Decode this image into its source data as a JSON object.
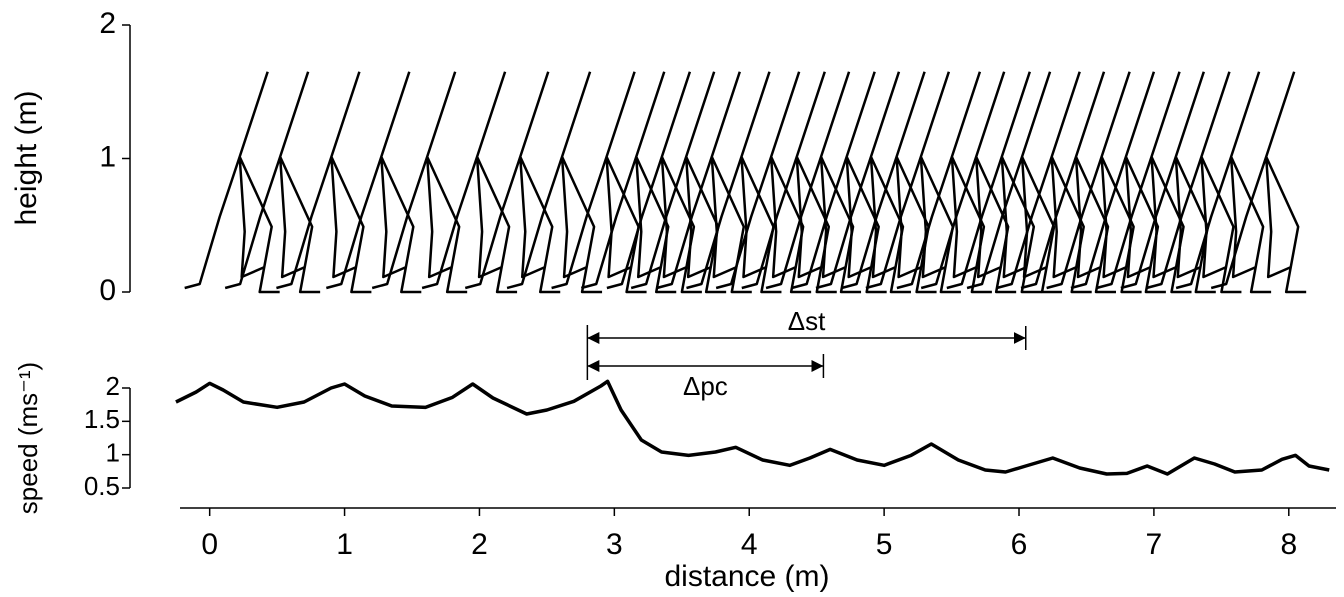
{
  "chart_data": [
    {
      "type": "stick",
      "ylabel": "height (m)",
      "ylim": [
        0,
        2
      ],
      "yticks": [
        0,
        1,
        2
      ],
      "color": "#000000",
      "x": [
        0.43,
        0.73,
        1.11,
        1.48,
        1.82,
        2.19,
        2.51,
        2.82,
        3.15,
        3.37,
        3.56,
        3.74,
        3.93,
        4.15,
        4.37,
        4.56,
        4.74,
        4.93,
        5.11,
        5.3,
        5.48,
        5.71,
        5.89,
        6.08,
        6.23,
        6.45,
        6.63,
        6.82,
        7.0,
        7.19,
        7.37,
        7.56,
        7.78,
        8.04
      ],
      "values": [
        1.65,
        1.65,
        1.65,
        1.65,
        1.65,
        1.65,
        1.65,
        1.65,
        1.65,
        1.65,
        1.65,
        1.65,
        1.65,
        1.65,
        1.65,
        1.65,
        1.65,
        1.65,
        1.65,
        1.65,
        1.65,
        1.65,
        1.65,
        1.65,
        1.65,
        1.65,
        1.65,
        1.65,
        1.65,
        1.65,
        1.65,
        1.65,
        1.65,
        1.65
      ]
    },
    {
      "type": "line",
      "ylabel": "speed (ms⁻¹)",
      "xlabel": "distance (m)",
      "color": "#000000",
      "xlim": [
        -0.22,
        8.35
      ],
      "xticks": [
        0,
        1,
        2,
        3,
        4,
        5,
        6,
        7,
        8
      ],
      "ylim": [
        0.5,
        2
      ],
      "yticks": [
        0.5,
        1,
        1.5,
        2
      ],
      "x": [
        -0.25,
        -0.1,
        0.0,
        0.1,
        0.25,
        0.5,
        0.7,
        0.9,
        1.0,
        1.15,
        1.35,
        1.6,
        1.8,
        1.95,
        2.1,
        2.35,
        2.5,
        2.7,
        2.9,
        2.95,
        3.05,
        3.2,
        3.35,
        3.55,
        3.75,
        3.9,
        4.1,
        4.3,
        4.45,
        4.6,
        4.8,
        5.0,
        5.2,
        5.35,
        5.55,
        5.75,
        5.9,
        6.05,
        6.25,
        6.45,
        6.65,
        6.8,
        6.95,
        7.1,
        7.3,
        7.45,
        7.6,
        7.8,
        7.95,
        8.05,
        8.15,
        8.3
      ],
      "values": [
        1.79,
        1.94,
        2.07,
        1.97,
        1.79,
        1.71,
        1.79,
        2.0,
        2.06,
        1.88,
        1.73,
        1.71,
        1.86,
        2.06,
        1.85,
        1.61,
        1.67,
        1.8,
        2.03,
        2.1,
        1.67,
        1.22,
        1.04,
        0.99,
        1.04,
        1.11,
        0.92,
        0.84,
        0.95,
        1.08,
        0.92,
        0.84,
        0.99,
        1.16,
        0.92,
        0.77,
        0.74,
        0.83,
        0.95,
        0.8,
        0.71,
        0.72,
        0.83,
        0.71,
        0.95,
        0.86,
        0.74,
        0.77,
        0.93,
        0.99,
        0.83,
        0.77
      ],
      "annotations": [
        {
          "text": "Δst",
          "x": [
            2.8,
            6.05
          ]
        },
        {
          "text": "Δpc",
          "x": [
            2.8,
            4.55
          ]
        }
      ]
    }
  ]
}
